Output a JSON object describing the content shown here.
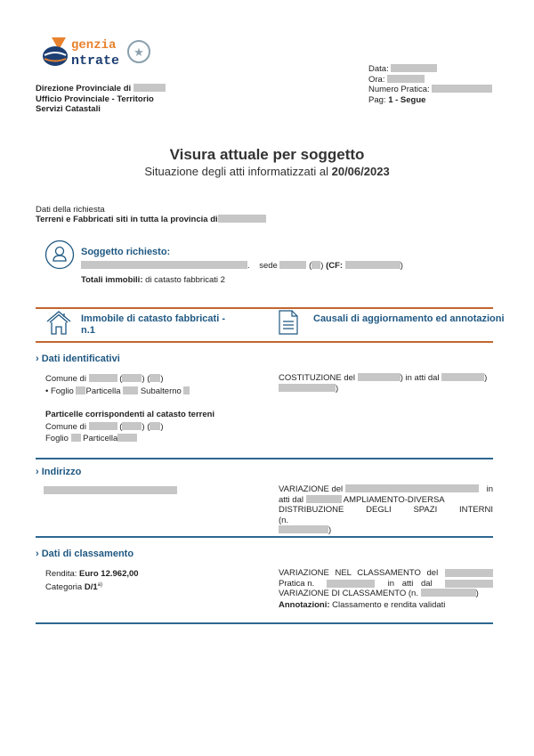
{
  "logo": {
    "text_top": "genzia",
    "text_bottom": "ntrate",
    "brand": "Agenzia Entrate",
    "orange": "#e8822e",
    "navy": "#1d3f73"
  },
  "header": {
    "left": [
      "Direzione Provinciale di",
      "Ufficio Provinciale - Territorio",
      "Servizi Catastali"
    ],
    "data_label": "Data:",
    "ora_label": "Ora:",
    "pratica_label": "Numero Pratica:",
    "pag_label": "Pag:",
    "pag_value": "1 - Segue"
  },
  "title": "Visura attuale per soggetto",
  "subtitle": "Situazione degli atti informatizzati al",
  "subtitle_date": "20/06/2023",
  "richiesta": {
    "label": "Dati della richiesta",
    "text": "Terreni e Fabbricati siti in tutta la provincia di"
  },
  "soggetto": {
    "title": "Soggetto richiesto:",
    "sede": "sede",
    "cf": "(CF:",
    "totali_label": "Totali immobili:",
    "totali_value": "di catasto fabbricati 2"
  },
  "band": {
    "immobile_line1": "Immobile di catasto fabbricati -",
    "immobile_line2": "n.1",
    "causali": "Causali di aggiornamento ed annotazioni"
  },
  "identificativi": {
    "title": "Dati identificativi",
    "comune": "Comune di",
    "foglio": "• Foglio",
    "particella": "Particella",
    "subalterno": "Subalterno",
    "corrisp_title": "Particelle corrispondenti al catasto terreni",
    "comune2": "Comune di",
    "foglio2": "Foglio",
    "particella2": "Particella",
    "costituzione": "COSTITUZIONE del",
    "in_atti": "in atti dal"
  },
  "indirizzo": {
    "title": "Indirizzo",
    "var_del": "VARIAZIONE del",
    "in": "in",
    "atti_dal": "atti dal",
    "ampl": "AMPLIAMENTO-DIVERSA",
    "distrib": "DISTRIBUZIONE DEGLI SPAZI INTERNI (n."
  },
  "classamento": {
    "title": "Dati di classamento",
    "rendita_label": "Rendita:",
    "rendita_value": "Euro 12.962,00",
    "categoria_label": "Categoria",
    "categoria_value": "D/1",
    "cat_note": "a)",
    "var_class": "VARIAZIONE NEL CLASSAMENTO del",
    "pratica": "Pratica n.",
    "in_atti_dal": "in atti dal",
    "var_di_class": "VARIAZIONE DI CLASSAMENTO (n.",
    "annot_label": "Annotazioni:",
    "annot_value": "Classamento e rendita validati"
  },
  "colors": {
    "blue": "#1f5882",
    "orange": "#c2662f",
    "redaction": "#c6c6c6"
  }
}
